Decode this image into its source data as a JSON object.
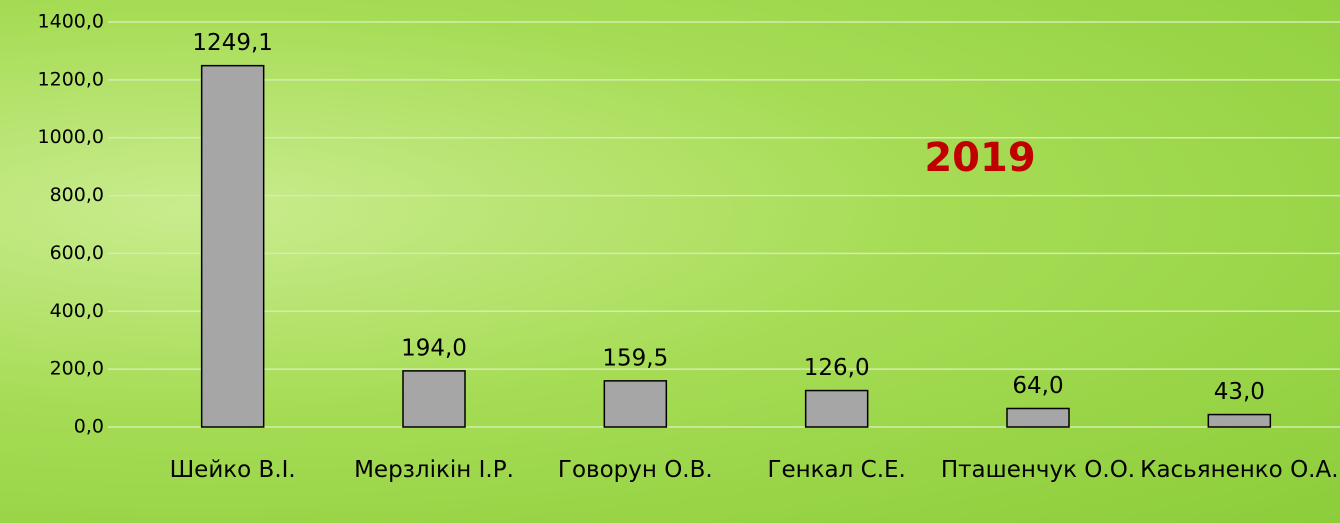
{
  "chart_data": {
    "type": "bar",
    "title": "2019",
    "categories": [
      "Шейко В.І.",
      "Мерзлікін І.Р.",
      "Говорун О.В.",
      "Генкал С.Е.",
      "Пташенчук О.О.",
      "Касьяненко О.А."
    ],
    "values": [
      1249.1,
      194.0,
      159.5,
      126.0,
      64.0,
      43.0
    ],
    "value_labels": [
      "1249,1",
      "194,0",
      "159,5",
      "126,0",
      "64,0",
      "43,0"
    ],
    "color": "#a6a6a6",
    "ylim": [
      0,
      1400
    ],
    "yticks": [
      {
        "value": 0,
        "label": "0,0"
      },
      {
        "value": 200,
        "label": "200,0"
      },
      {
        "value": 400,
        "label": "400,0"
      },
      {
        "value": 600,
        "label": "600,0"
      },
      {
        "value": 800,
        "label": "800,0"
      },
      {
        "value": 1000,
        "label": "1000,0"
      },
      {
        "value": 1200,
        "label": "1200,0"
      },
      {
        "value": 1400,
        "label": "1400,0"
      }
    ],
    "grid": true
  }
}
